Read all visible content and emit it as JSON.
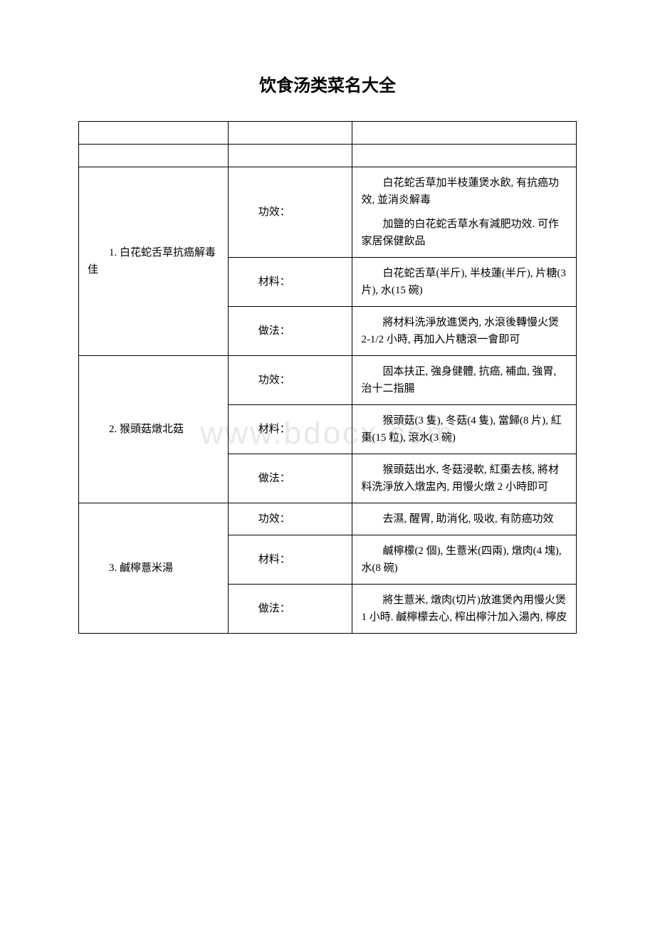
{
  "title": "饮食汤类菜名大全",
  "watermark": "www.bdocx.com",
  "labels": {
    "effect": "功效：",
    "material": "材料：",
    "method": "做法："
  },
  "recipes": [
    {
      "name": "1. 白花蛇舌草抗癌解毒佳",
      "effect": [
        "白花蛇舌草加半枝蓮煲水飲, 有抗癌功效, 並消炎解毒",
        "加鹽的白花蛇舌草水有減肥功效. 可作家居保健飲品"
      ],
      "material": "白花蛇舌草(半斤), 半枝蓮(半斤), 片糖(3片), 水(15 碗)",
      "method": "將材料洗淨放進煲內, 水滾後轉慢火煲 2-1/2 小時, 再加入片糖滾一會即可"
    },
    {
      "name": "2. 猴頭菇燉北菇",
      "effect": [
        "固本扶正, 強身健體, 抗癌, 補血, 強胃, 治十二指腸"
      ],
      "material": "猴頭菇(3 隻), 冬菇(4 隻), 當歸(8 片), 紅棗(15 粒), 滾水(3 碗)",
      "method": "猴頭菇出水, 冬菇浸軟, 紅棗去核, 將材料洗淨放入燉盅內, 用慢火燉 2 小時即可"
    },
    {
      "name": "3. 鹹檸薏米湯",
      "effect": [
        "去濕, 醒胃, 助消化, 吸收, 有防癌功效"
      ],
      "material": "鹹檸檬(2 個), 生薏米(四兩), 燉肉(4 塊), 水(8 碗)",
      "method": "將生薏米, 燉肉(切片)放進煲內用慢火煲 1 小時. 鹹檸檬去心, 榨出檸汁加入湯內, 檸皮"
    }
  ]
}
